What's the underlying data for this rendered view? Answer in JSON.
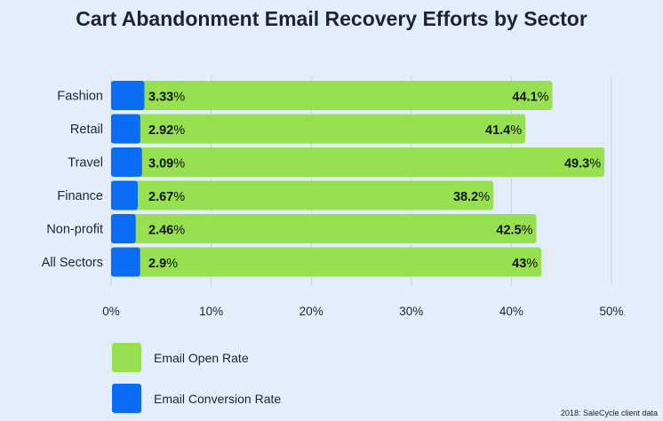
{
  "chart_data": {
    "type": "bar",
    "orientation": "horizontal",
    "title": "Cart Abandonment Email Recovery Efforts by Sector",
    "categories": [
      "Fashion",
      "Retail",
      "Travel",
      "Finance",
      "Non-profit",
      "All Sectors"
    ],
    "series": [
      {
        "name": "Email Open Rate",
        "color": "#97e04f",
        "values": [
          44.1,
          41.4,
          49.3,
          38.2,
          42.5,
          43
        ]
      },
      {
        "name": "Email Conversion Rate",
        "color": "#0b6cf6",
        "values": [
          3.33,
          2.92,
          3.09,
          2.67,
          2.46,
          2.9
        ]
      }
    ],
    "xlim": [
      0,
      50
    ],
    "xticks": [
      "0%",
      "10%",
      "20%",
      "30%",
      "40%",
      "50%"
    ],
    "grid": true,
    "legend_position": "bottom-left",
    "source": "2018: SaleCycle client data"
  }
}
